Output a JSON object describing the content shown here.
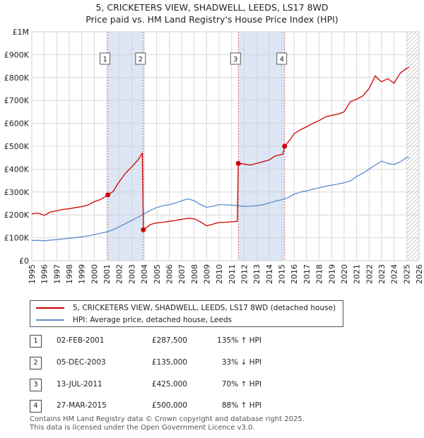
{
  "title_line1": "5, CRICKETERS VIEW, SHADWELL, LEEDS, LS17 8WD",
  "title_line2": "Price paid vs. HM Land Registry's House Price Index (HPI)",
  "colors": {
    "property": "#cc0000",
    "hpi": "#5b8fcc",
    "shade": "#dde6f4",
    "grid": "#d0d0d0",
    "marker": "#cc0000"
  },
  "legend": {
    "property_label": "5, CRICKETERS VIEW, SHADWELL, LEEDS, LS17 8WD (detached house)",
    "hpi_label": "HPI: Average price, detached house, Leeds"
  },
  "transactions": [
    {
      "num": "1",
      "date": "02-FEB-2001",
      "price": "£287,500",
      "hpi": "135% ↑ HPI"
    },
    {
      "num": "2",
      "date": "05-DEC-2003",
      "price": "£135,000",
      "hpi": "33% ↓ HPI"
    },
    {
      "num": "3",
      "date": "13-JUL-2011",
      "price": "£425,000",
      "hpi": "70% ↑ HPI"
    },
    {
      "num": "4",
      "date": "27-MAR-2015",
      "price": "£500,000",
      "hpi": "88% ↑ HPI"
    }
  ],
  "footer_line1": "Contains HM Land Registry data © Crown copyright and database right 2025.",
  "footer_line2": "This data is licensed under the Open Government Licence v3.0.",
  "chart_data": {
    "type": "line",
    "xlim": [
      1995,
      2026
    ],
    "ylim": [
      0,
      1000000
    ],
    "x_ticks": [
      1995,
      1996,
      1997,
      1998,
      1999,
      2000,
      2001,
      2002,
      2003,
      2004,
      2005,
      2006,
      2007,
      2008,
      2009,
      2010,
      2011,
      2012,
      2013,
      2014,
      2015,
      2016,
      2017,
      2018,
      2019,
      2020,
      2021,
      2022,
      2023,
      2024,
      2025,
      2026
    ],
    "y_ticks": [
      0,
      100000,
      200000,
      300000,
      400000,
      500000,
      600000,
      700000,
      800000,
      900000,
      1000000
    ],
    "y_tick_labels": [
      "£0",
      "£100K",
      "£200K",
      "£300K",
      "£400K",
      "£500K",
      "£600K",
      "£700K",
      "£800K",
      "£900K",
      "£1M"
    ],
    "shaded_periods": [
      [
        2001.09,
        2003.93
      ],
      [
        2011.53,
        2015.24
      ]
    ],
    "hatched_from": 2025.0,
    "sales": [
      {
        "label": "1",
        "x": 2001.09,
        "y": 287500
      },
      {
        "label": "2",
        "x": 2003.93,
        "y": 135000
      },
      {
        "label": "3",
        "x": 2011.53,
        "y": 425000
      },
      {
        "label": "4",
        "x": 2015.24,
        "y": 500000
      }
    ],
    "series": [
      {
        "name": "5, CRICKETERS VIEW, SHADWELL, LEEDS, LS17 8WD (detached house)",
        "x": [
          1995,
          1995.5,
          1996,
          1996.5,
          1997,
          1997.5,
          1998,
          1998.5,
          1999,
          1999.5,
          2000,
          2000.5,
          2001.09,
          2001.5,
          2002,
          2002.5,
          2003,
          2003.5,
          2003.85,
          2003.93,
          2004.5,
          2005,
          2005.5,
          2006,
          2006.5,
          2007,
          2007.5,
          2008,
          2008.5,
          2009,
          2009.5,
          2010,
          2010.5,
          2011,
          2011.45,
          2011.53,
          2012,
          2012.5,
          2013,
          2013.5,
          2014,
          2014.5,
          2015.1,
          2015.24,
          2015.7,
          2016,
          2016.5,
          2017,
          2017.5,
          2018,
          2018.5,
          2019,
          2019.5,
          2020,
          2020.5,
          2021,
          2021.5,
          2022,
          2022.5,
          2022.8,
          2023,
          2023.5,
          2024,
          2024.5,
          2025,
          2025.2
        ],
        "values": [
          205000,
          208000,
          198000,
          213000,
          218000,
          224000,
          227000,
          232000,
          236000,
          243000,
          258000,
          267000,
          287500,
          302000,
          345000,
          382000,
          410000,
          440000,
          470000,
          135000,
          158000,
          165000,
          168000,
          172000,
          176000,
          181000,
          185000,
          183000,
          170000,
          152000,
          160000,
          167000,
          168000,
          170000,
          172000,
          425000,
          422000,
          418000,
          425000,
          432000,
          440000,
          458000,
          465000,
          500000,
          530000,
          555000,
          572000,
          585000,
          600000,
          612000,
          628000,
          635000,
          640000,
          650000,
          695000,
          705000,
          720000,
          752000,
          808000,
          790000,
          782000,
          795000,
          775000,
          820000,
          840000,
          845000
        ]
      },
      {
        "name": "HPI: Average price, detached house, Leeds",
        "x": [
          1995,
          1995.5,
          1996,
          1996.5,
          1997,
          1997.5,
          1998,
          1998.5,
          1999,
          1999.5,
          2000,
          2000.5,
          2001,
          2001.5,
          2002,
          2002.5,
          2003,
          2003.5,
          2004,
          2004.5,
          2005,
          2005.5,
          2006,
          2006.5,
          2007,
          2007.5,
          2008,
          2008.5,
          2009,
          2009.5,
          2010,
          2010.5,
          2011,
          2011.5,
          2012,
          2012.5,
          2013,
          2013.5,
          2014,
          2014.5,
          2015,
          2015.5,
          2016,
          2016.5,
          2017,
          2017.5,
          2018,
          2018.5,
          2019,
          2019.5,
          2020,
          2020.5,
          2021,
          2021.5,
          2022,
          2022.5,
          2023,
          2023.5,
          2024,
          2024.5,
          2025,
          2025.2
        ],
        "values": [
          88000,
          89000,
          87000,
          90000,
          92000,
          95000,
          98000,
          101000,
          104000,
          108000,
          114000,
          120000,
          126000,
          135000,
          148000,
          162000,
          176000,
          190000,
          205000,
          220000,
          232000,
          240000,
          245000,
          252000,
          262000,
          270000,
          262000,
          245000,
          233000,
          238000,
          245000,
          244000,
          243000,
          240000,
          237000,
          238000,
          240000,
          244000,
          252000,
          260000,
          266000,
          275000,
          290000,
          300000,
          305000,
          312000,
          318000,
          325000,
          330000,
          335000,
          340000,
          348000,
          368000,
          382000,
          400000,
          418000,
          435000,
          425000,
          420000,
          432000,
          450000,
          450000
        ]
      }
    ]
  }
}
